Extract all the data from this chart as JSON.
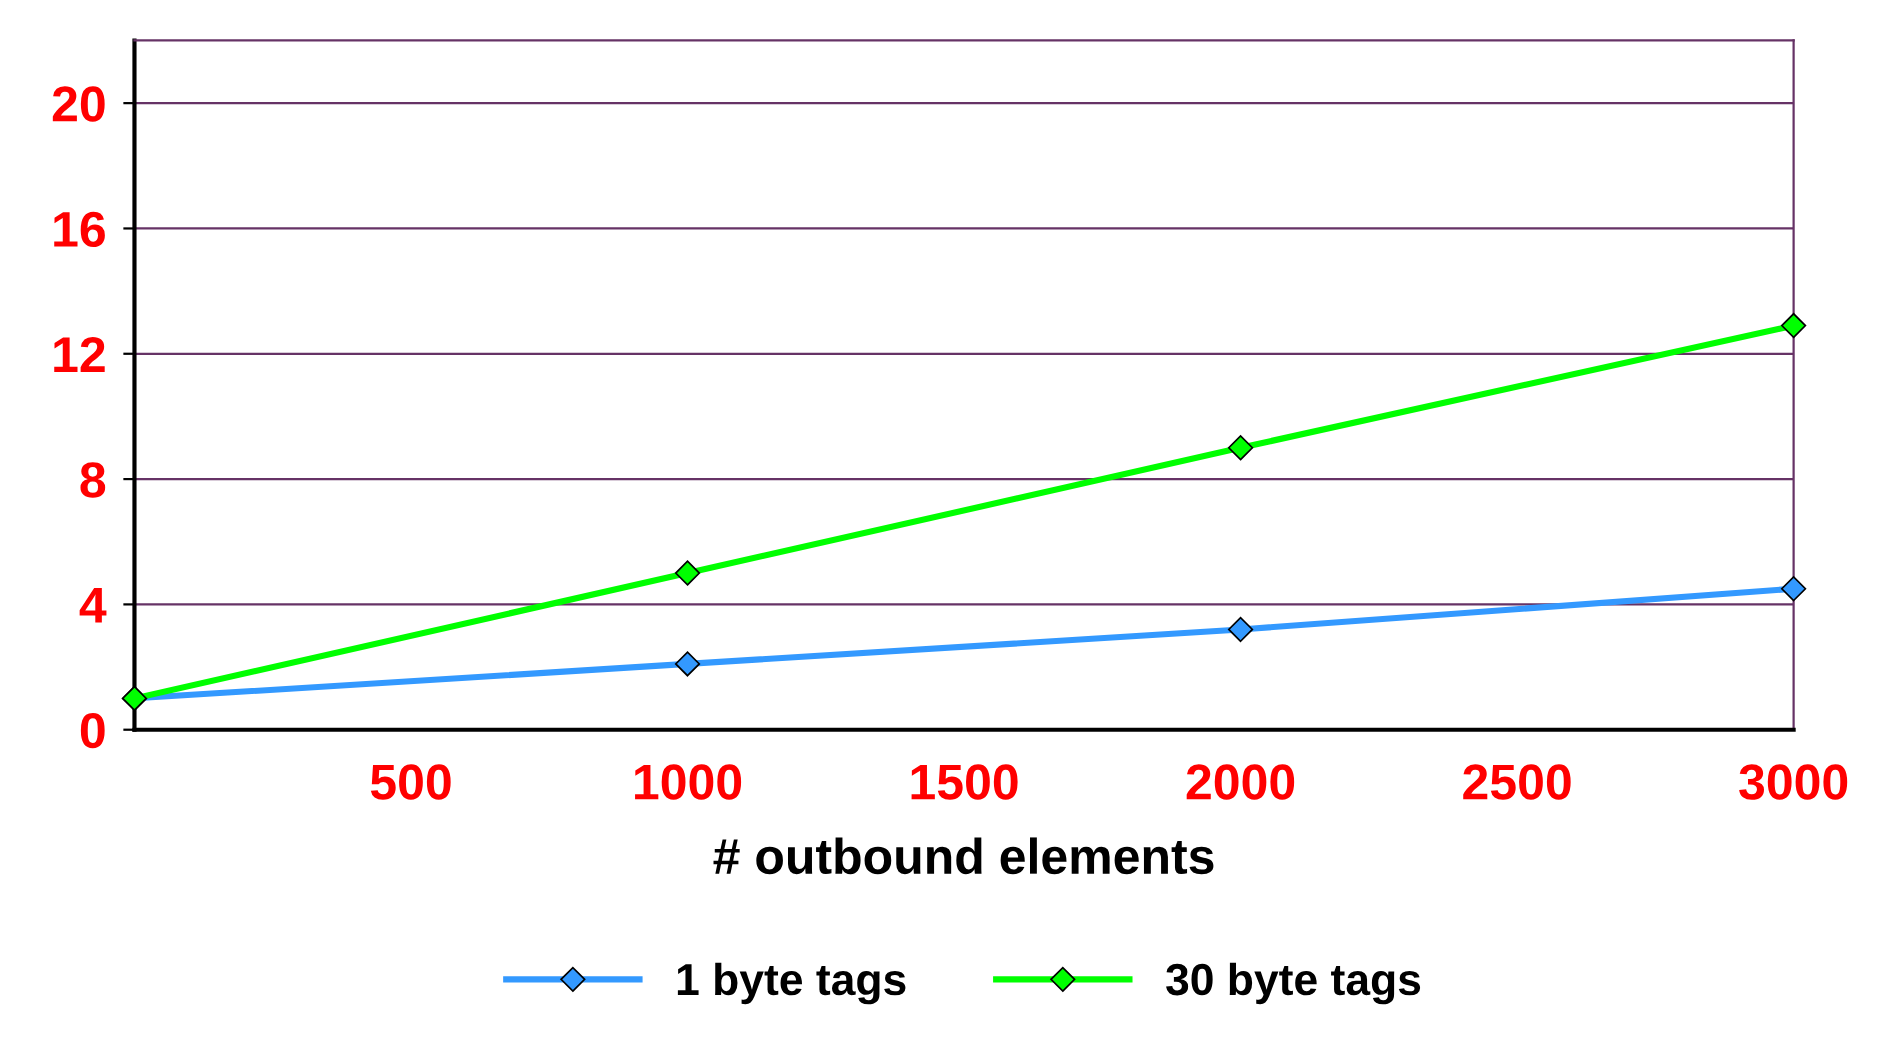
{
  "chart_data": {
    "type": "line",
    "xlabel": "# outbound elements",
    "x": [
      0,
      1000,
      2000,
      3000
    ],
    "series": [
      {
        "name": "1 byte tags",
        "color": "#3399ff",
        "values": [
          1.0,
          2.1,
          3.2,
          4.5
        ]
      },
      {
        "name": "30 byte tags",
        "color": "#00ff00",
        "values": [
          1.0,
          5.0,
          9.0,
          12.9
        ]
      }
    ],
    "xlim": [
      0,
      3000
    ],
    "xticks": [
      500,
      1000,
      1500,
      2000,
      2500,
      3000
    ],
    "ylim": [
      0,
      22
    ],
    "yticks": [
      0,
      4,
      8,
      12,
      16,
      20
    ],
    "grid": "y",
    "legend": "bottom",
    "marker": "diamond",
    "line_style": "solid"
  }
}
